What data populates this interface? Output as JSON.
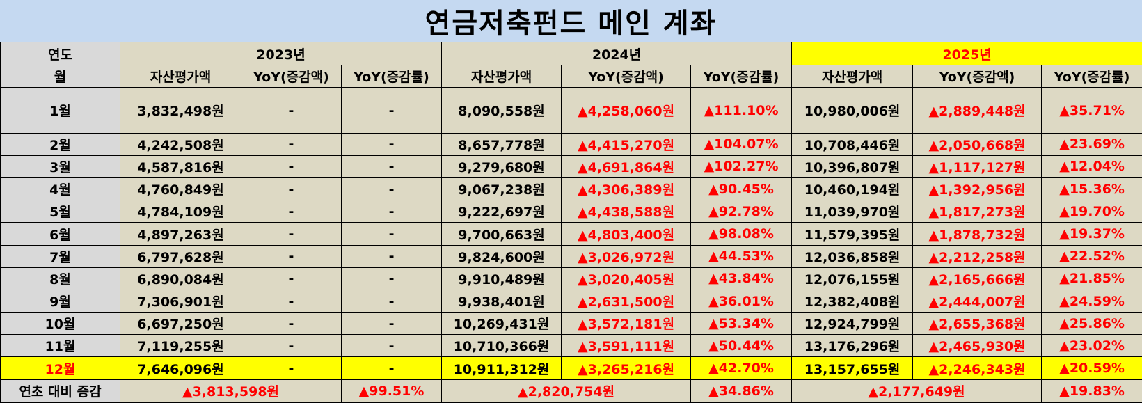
{
  "title": "연금저축펀드 메인 계좌",
  "colors": {
    "title_bg": "#c5d9f1",
    "label_bg": "#d9d9d9",
    "cell_bg": "#ddd9c4",
    "highlight": "#ffff00",
    "increase_red": "#ff0000"
  },
  "header": {
    "year_label": "연도",
    "month_label": "월",
    "years": [
      "2023년",
      "2024년",
      "2025년"
    ],
    "col_asset": "자산평가액",
    "col_yoy_amount": "YoY(증감액)",
    "col_yoy_rate": "YoY(증감률)"
  },
  "rows": [
    {
      "month": "1월",
      "y2023": {
        "asset": "3,832,498원",
        "yoy_amt": "-",
        "yoy_rate": "-"
      },
      "y2024": {
        "asset": "8,090,558원",
        "yoy_amt": "▲4,258,060원",
        "yoy_rate": "▲111.10%"
      },
      "y2025": {
        "asset": "10,980,006원",
        "yoy_amt": "▲2,889,448원",
        "yoy_rate": "▲35.71%"
      }
    },
    {
      "month": "2월",
      "y2023": {
        "asset": "4,242,508원",
        "yoy_amt": "-",
        "yoy_rate": "-"
      },
      "y2024": {
        "asset": "8,657,778원",
        "yoy_amt": "▲4,415,270원",
        "yoy_rate": "▲104.07%"
      },
      "y2025": {
        "asset": "10,708,446원",
        "yoy_amt": "▲2,050,668원",
        "yoy_rate": "▲23.69%"
      }
    },
    {
      "month": "3월",
      "y2023": {
        "asset": "4,587,816원",
        "yoy_amt": "-",
        "yoy_rate": "-"
      },
      "y2024": {
        "asset": "9,279,680원",
        "yoy_amt": "▲4,691,864원",
        "yoy_rate": "▲102.27%"
      },
      "y2025": {
        "asset": "10,396,807원",
        "yoy_amt": "▲1,117,127원",
        "yoy_rate": "▲12.04%"
      }
    },
    {
      "month": "4월",
      "y2023": {
        "asset": "4,760,849원",
        "yoy_amt": "-",
        "yoy_rate": "-"
      },
      "y2024": {
        "asset": "9,067,238원",
        "yoy_amt": "▲4,306,389원",
        "yoy_rate": "▲90.45%"
      },
      "y2025": {
        "asset": "10,460,194원",
        "yoy_amt": "▲1,392,956원",
        "yoy_rate": "▲15.36%"
      }
    },
    {
      "month": "5월",
      "y2023": {
        "asset": "4,784,109원",
        "yoy_amt": "-",
        "yoy_rate": "-"
      },
      "y2024": {
        "asset": "9,222,697원",
        "yoy_amt": "▲4,438,588원",
        "yoy_rate": "▲92.78%"
      },
      "y2025": {
        "asset": "11,039,970원",
        "yoy_amt": "▲1,817,273원",
        "yoy_rate": "▲19.70%"
      }
    },
    {
      "month": "6월",
      "y2023": {
        "asset": "4,897,263원",
        "yoy_amt": "-",
        "yoy_rate": "-"
      },
      "y2024": {
        "asset": "9,700,663원",
        "yoy_amt": "▲4,803,400원",
        "yoy_rate": "▲98.08%"
      },
      "y2025": {
        "asset": "11,579,395원",
        "yoy_amt": "▲1,878,732원",
        "yoy_rate": "▲19.37%"
      }
    },
    {
      "month": "7월",
      "y2023": {
        "asset": "6,797,628원",
        "yoy_amt": "-",
        "yoy_rate": "-"
      },
      "y2024": {
        "asset": "9,824,600원",
        "yoy_amt": "▲3,026,972원",
        "yoy_rate": "▲44.53%"
      },
      "y2025": {
        "asset": "12,036,858원",
        "yoy_amt": "▲2,212,258원",
        "yoy_rate": "▲22.52%"
      }
    },
    {
      "month": "8월",
      "y2023": {
        "asset": "6,890,084원",
        "yoy_amt": "-",
        "yoy_rate": "-"
      },
      "y2024": {
        "asset": "9,910,489원",
        "yoy_amt": "▲3,020,405원",
        "yoy_rate": "▲43.84%"
      },
      "y2025": {
        "asset": "12,076,155원",
        "yoy_amt": "▲2,165,666원",
        "yoy_rate": "▲21.85%"
      }
    },
    {
      "month": "9월",
      "y2023": {
        "asset": "7,306,901원",
        "yoy_amt": "-",
        "yoy_rate": "-"
      },
      "y2024": {
        "asset": "9,938,401원",
        "yoy_amt": "▲2,631,500원",
        "yoy_rate": "▲36.01%"
      },
      "y2025": {
        "asset": "12,382,408원",
        "yoy_amt": "▲2,444,007원",
        "yoy_rate": "▲24.59%"
      }
    },
    {
      "month": "10월",
      "y2023": {
        "asset": "6,697,250원",
        "yoy_amt": "-",
        "yoy_rate": "-"
      },
      "y2024": {
        "asset": "10,269,431원",
        "yoy_amt": "▲3,572,181원",
        "yoy_rate": "▲53.34%"
      },
      "y2025": {
        "asset": "12,924,799원",
        "yoy_amt": "▲2,655,368원",
        "yoy_rate": "▲25.86%"
      }
    },
    {
      "month": "11월",
      "y2023": {
        "asset": "7,119,255원",
        "yoy_amt": "-",
        "yoy_rate": "-"
      },
      "y2024": {
        "asset": "10,710,366원",
        "yoy_amt": "▲3,591,111원",
        "yoy_rate": "▲50.44%"
      },
      "y2025": {
        "asset": "13,176,296원",
        "yoy_amt": "▲2,465,930원",
        "yoy_rate": "▲23.02%"
      }
    },
    {
      "month": "12월",
      "y2023": {
        "asset": "7,646,096원",
        "yoy_amt": "-",
        "yoy_rate": "-"
      },
      "y2024": {
        "asset": "10,911,312원",
        "yoy_amt": "▲3,265,216원",
        "yoy_rate": "▲42.70%"
      },
      "y2025": {
        "asset": "13,157,655원",
        "yoy_amt": "▲2,246,343원",
        "yoy_rate": "▲20.59%"
      }
    }
  ],
  "footer": {
    "label": "연초 대비 증감",
    "y2023": {
      "amount": "▲3,813,598원",
      "rate": "▲99.51%"
    },
    "y2024": {
      "amount": "▲2,820,754원",
      "rate": "▲34.86%"
    },
    "y2025": {
      "amount": "▲2,177,649원",
      "rate": "▲19.83%"
    }
  }
}
